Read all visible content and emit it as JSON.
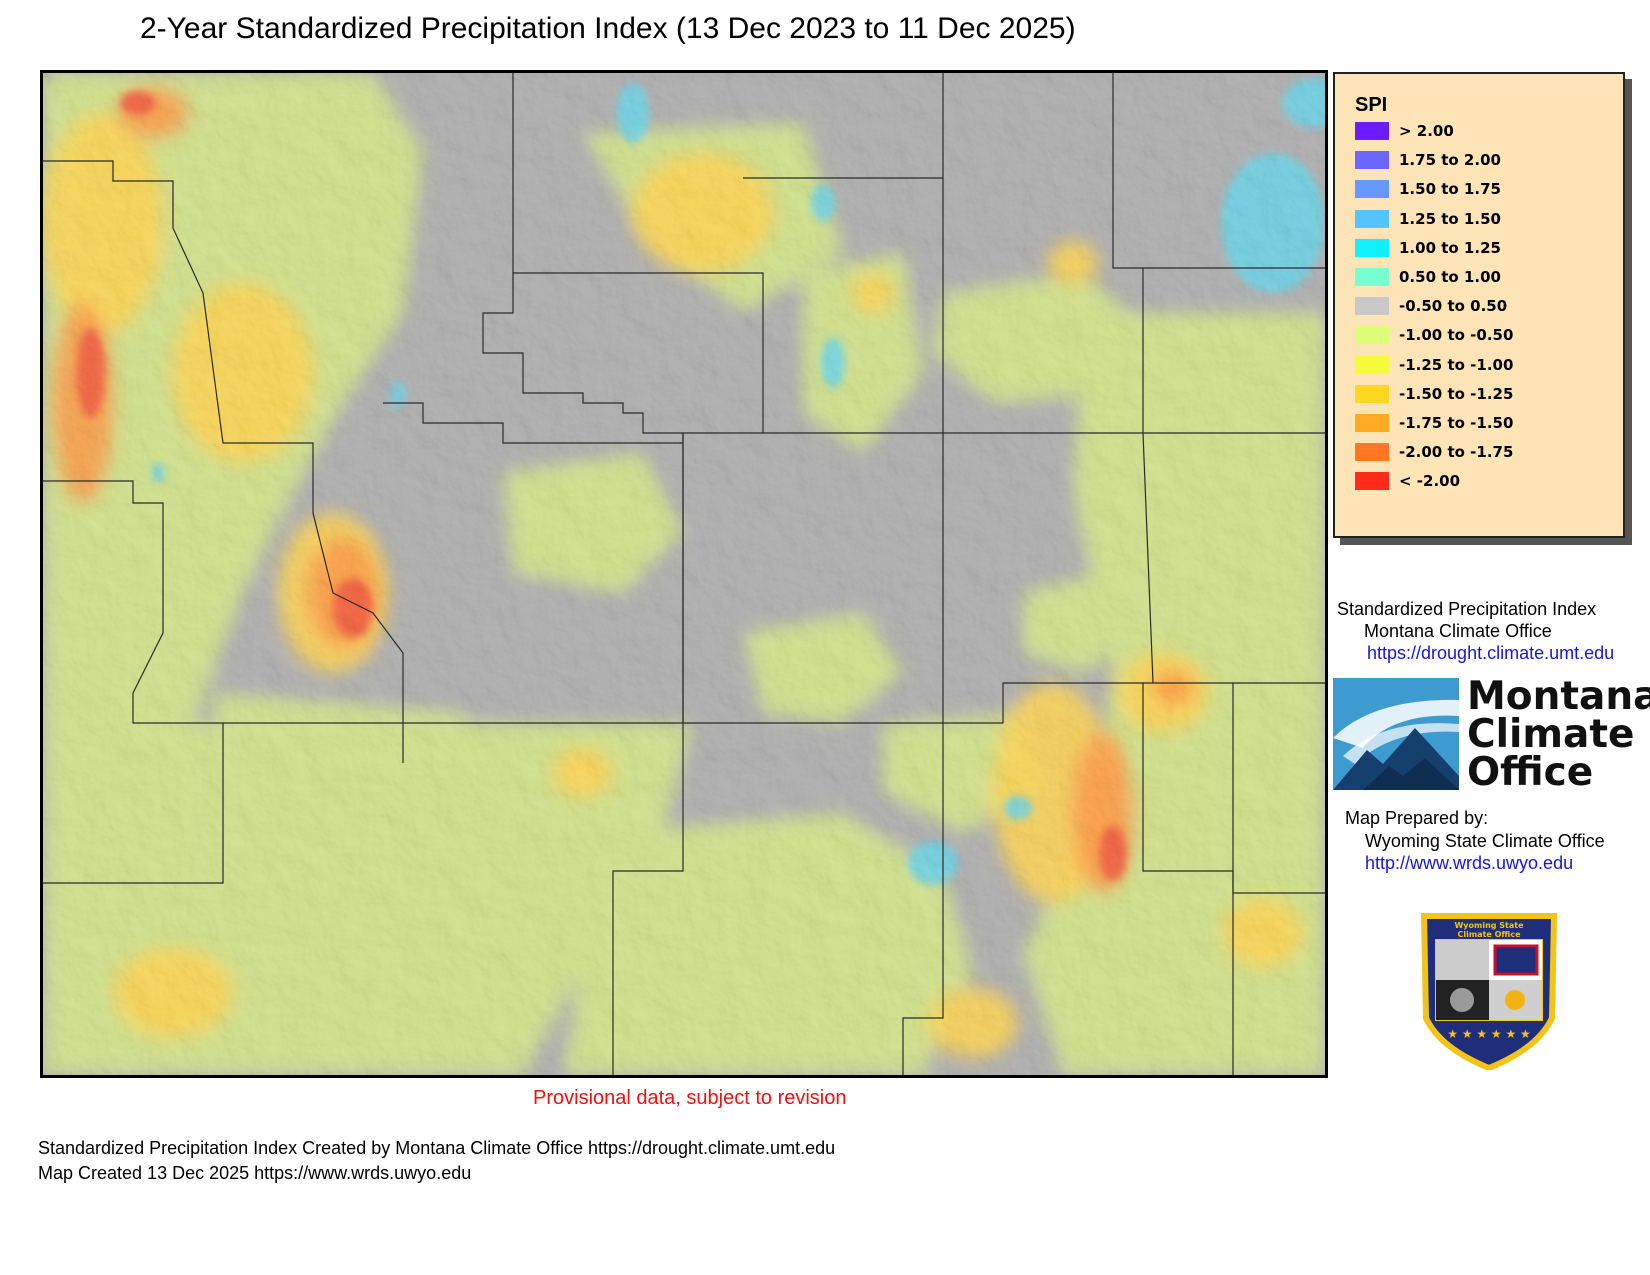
{
  "title": "2-Year Standardized Precipitation Index (13 Dec 2023 to 11 Dec 2025)",
  "legend": {
    "title": "SPI",
    "items": [
      {
        "label": "> 2.00",
        "color": "#6b1bff"
      },
      {
        "label": "1.75 to 2.00",
        "color": "#6b66ff"
      },
      {
        "label": "1.50 to 1.75",
        "color": "#6699ff"
      },
      {
        "label": "1.25 to 1.50",
        "color": "#55c3ff"
      },
      {
        "label": "1.00 to 1.25",
        "color": "#11f0ff"
      },
      {
        "label": "0.50 to 1.00",
        "color": "#77ffd2"
      },
      {
        "label": "-0.50 to 0.50",
        "color": "#c8c8c8"
      },
      {
        "label": "-1.00 to -0.50",
        "color": "#ddff77"
      },
      {
        "label": "-1.25 to -1.00",
        "color": "#f5fb3a"
      },
      {
        "label": "-1.50 to -1.25",
        "color": "#ffd722"
      },
      {
        "label": "-1.75 to -1.50",
        "color": "#ffaa22"
      },
      {
        "label": "-2.00 to -1.75",
        "color": "#ff7722"
      },
      {
        "label": "< -2.00",
        "color": "#ff2a1a"
      }
    ]
  },
  "credits": {
    "mco_line1": "Standardized Precipitation Index",
    "mco_line2": "Montana Climate Office",
    "mco_url": "https://drought.climate.umt.edu",
    "prepared_label": "Map Prepared by:",
    "wsco_name": "Wyoming State Climate Office",
    "wsco_url": "http://www.wrds.uwyo.edu"
  },
  "mco_logo": {
    "line1": "Montana",
    "line2": "Climate",
    "line3": "Office"
  },
  "wsco_seal": {
    "line1": "Wyoming State",
    "line2": "Climate Office"
  },
  "provisional": "Provisional data, subject to revision",
  "footer": {
    "line1": "Standardized Precipitation Index Created by Montana Climate Office https://drought.climate.umt.edu",
    "line2": "Map Created 13 Dec 2025 https://www.wrds.uwyo.edu"
  },
  "map": {
    "region": "Wyoming",
    "dominant_category": "-0.50 to 0.50",
    "driest_category": "< -2.00",
    "wettest_category": "1.00 to 1.25"
  }
}
